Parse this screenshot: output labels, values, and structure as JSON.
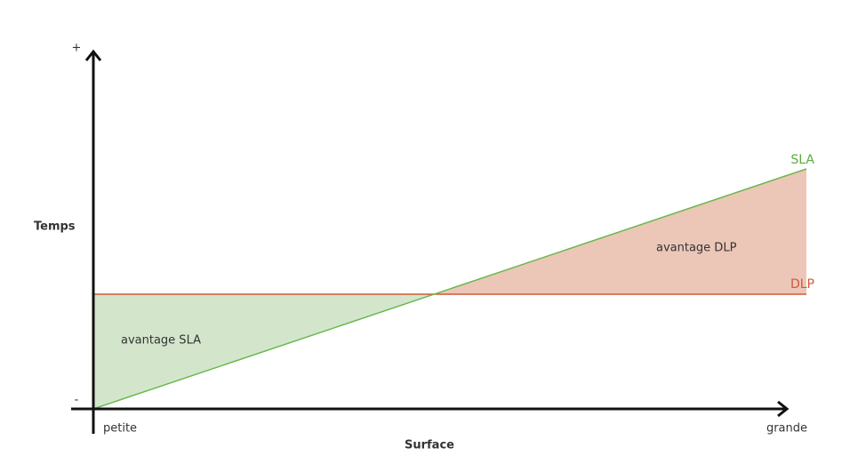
{
  "y_axis": {
    "label": "Temps",
    "top": "+",
    "bottom": "-"
  },
  "x_axis": {
    "label": "Surface",
    "left": "petite",
    "right": "grande"
  },
  "lines": {
    "sla": "SLA",
    "dlp": "DLP"
  },
  "regions": {
    "sla_advantage": "avantage SLA",
    "dlp_advantage": "avantage DLP"
  }
}
